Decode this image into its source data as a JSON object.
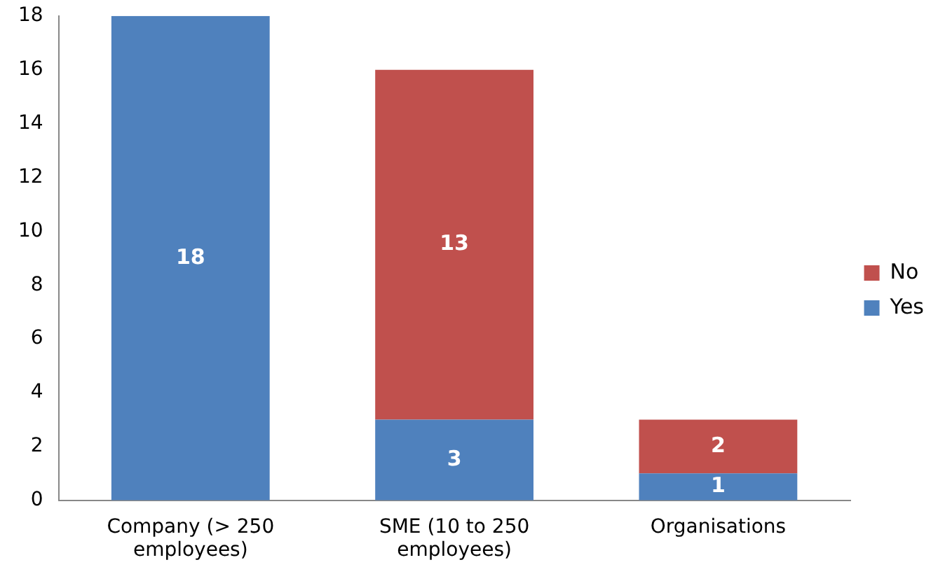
{
  "chart_data": {
    "type": "bar",
    "stacked": true,
    "categories": [
      "Company (> 250 employees)",
      "SME (10 to 250 employees)",
      "Organisations"
    ],
    "series": [
      {
        "name": "Yes",
        "color": "#4f81bd",
        "values": [
          18,
          3,
          1
        ]
      },
      {
        "name": "No",
        "color": "#c0504d",
        "values": [
          null,
          13,
          2
        ]
      }
    ],
    "ylim": [
      0,
      18
    ],
    "yticks": [
      0,
      2,
      4,
      6,
      8,
      10,
      12,
      14,
      16,
      18
    ],
    "grid": false,
    "legend": "right",
    "data_labels": true
  }
}
